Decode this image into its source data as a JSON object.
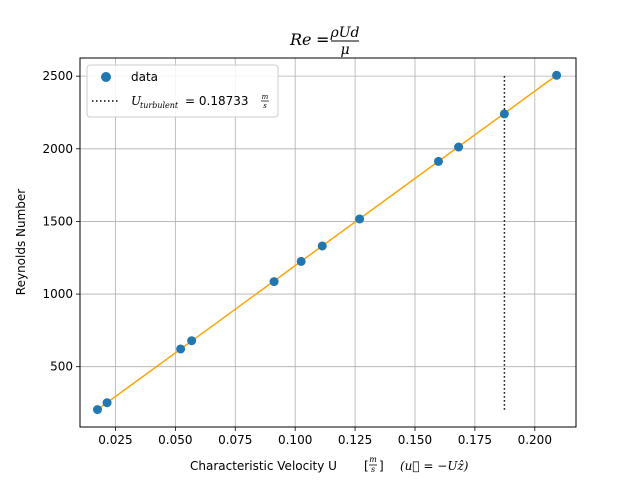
{
  "chart_data": {
    "type": "scatter",
    "title_lhs": "Re",
    "title_frac_num": "ρUd",
    "title_frac_den": "μ",
    "xlabel": "Characteristic Velocity U",
    "xlabel_units_num": "m",
    "xlabel_units_den": "s",
    "xlabel_note": "(u⃗ = −Uẑ)",
    "ylabel": "Reynolds Number",
    "xlim": [
      0.0102,
      0.2172
    ],
    "ylim": [
      85,
      2625
    ],
    "xticks": [
      0.025,
      0.05,
      0.075,
      0.1,
      0.125,
      0.15,
      0.175,
      0.2
    ],
    "xtick_labels": [
      "0.025",
      "0.050",
      "0.075",
      "0.100",
      "0.125",
      "0.150",
      "0.175",
      "0.200"
    ],
    "yticks": [
      500,
      1000,
      1500,
      2000,
      2500
    ],
    "ytick_labels": [
      "500",
      "1000",
      "1500",
      "2000",
      "2500"
    ],
    "grid": true,
    "legend_position": "top-left",
    "series": [
      {
        "name": "data",
        "kind": "scatter",
        "color": "#1f77b4",
        "x": [
          0.0175,
          0.0215,
          0.0522,
          0.0568,
          0.0912,
          0.1025,
          0.1113,
          0.1269,
          0.1598,
          0.1682,
          0.1873,
          0.2091
        ],
        "y": [
          205,
          252,
          622,
          679,
          1086,
          1225,
          1331,
          1517,
          1913,
          2012,
          2240,
          2506
        ]
      },
      {
        "kind": "fit-line",
        "color": "#ffa500",
        "x": [
          0.0175,
          0.2091
        ],
        "y": [
          205,
          2506
        ]
      },
      {
        "name_prefix": "U",
        "name_sub": "turbulent",
        "name_value": " = 0.18733",
        "name_unit_num": "m",
        "name_unit_den": "s",
        "kind": "vline",
        "color": "#000000",
        "x": 0.18733,
        "y_range": [
          205,
          2500
        ]
      }
    ]
  }
}
